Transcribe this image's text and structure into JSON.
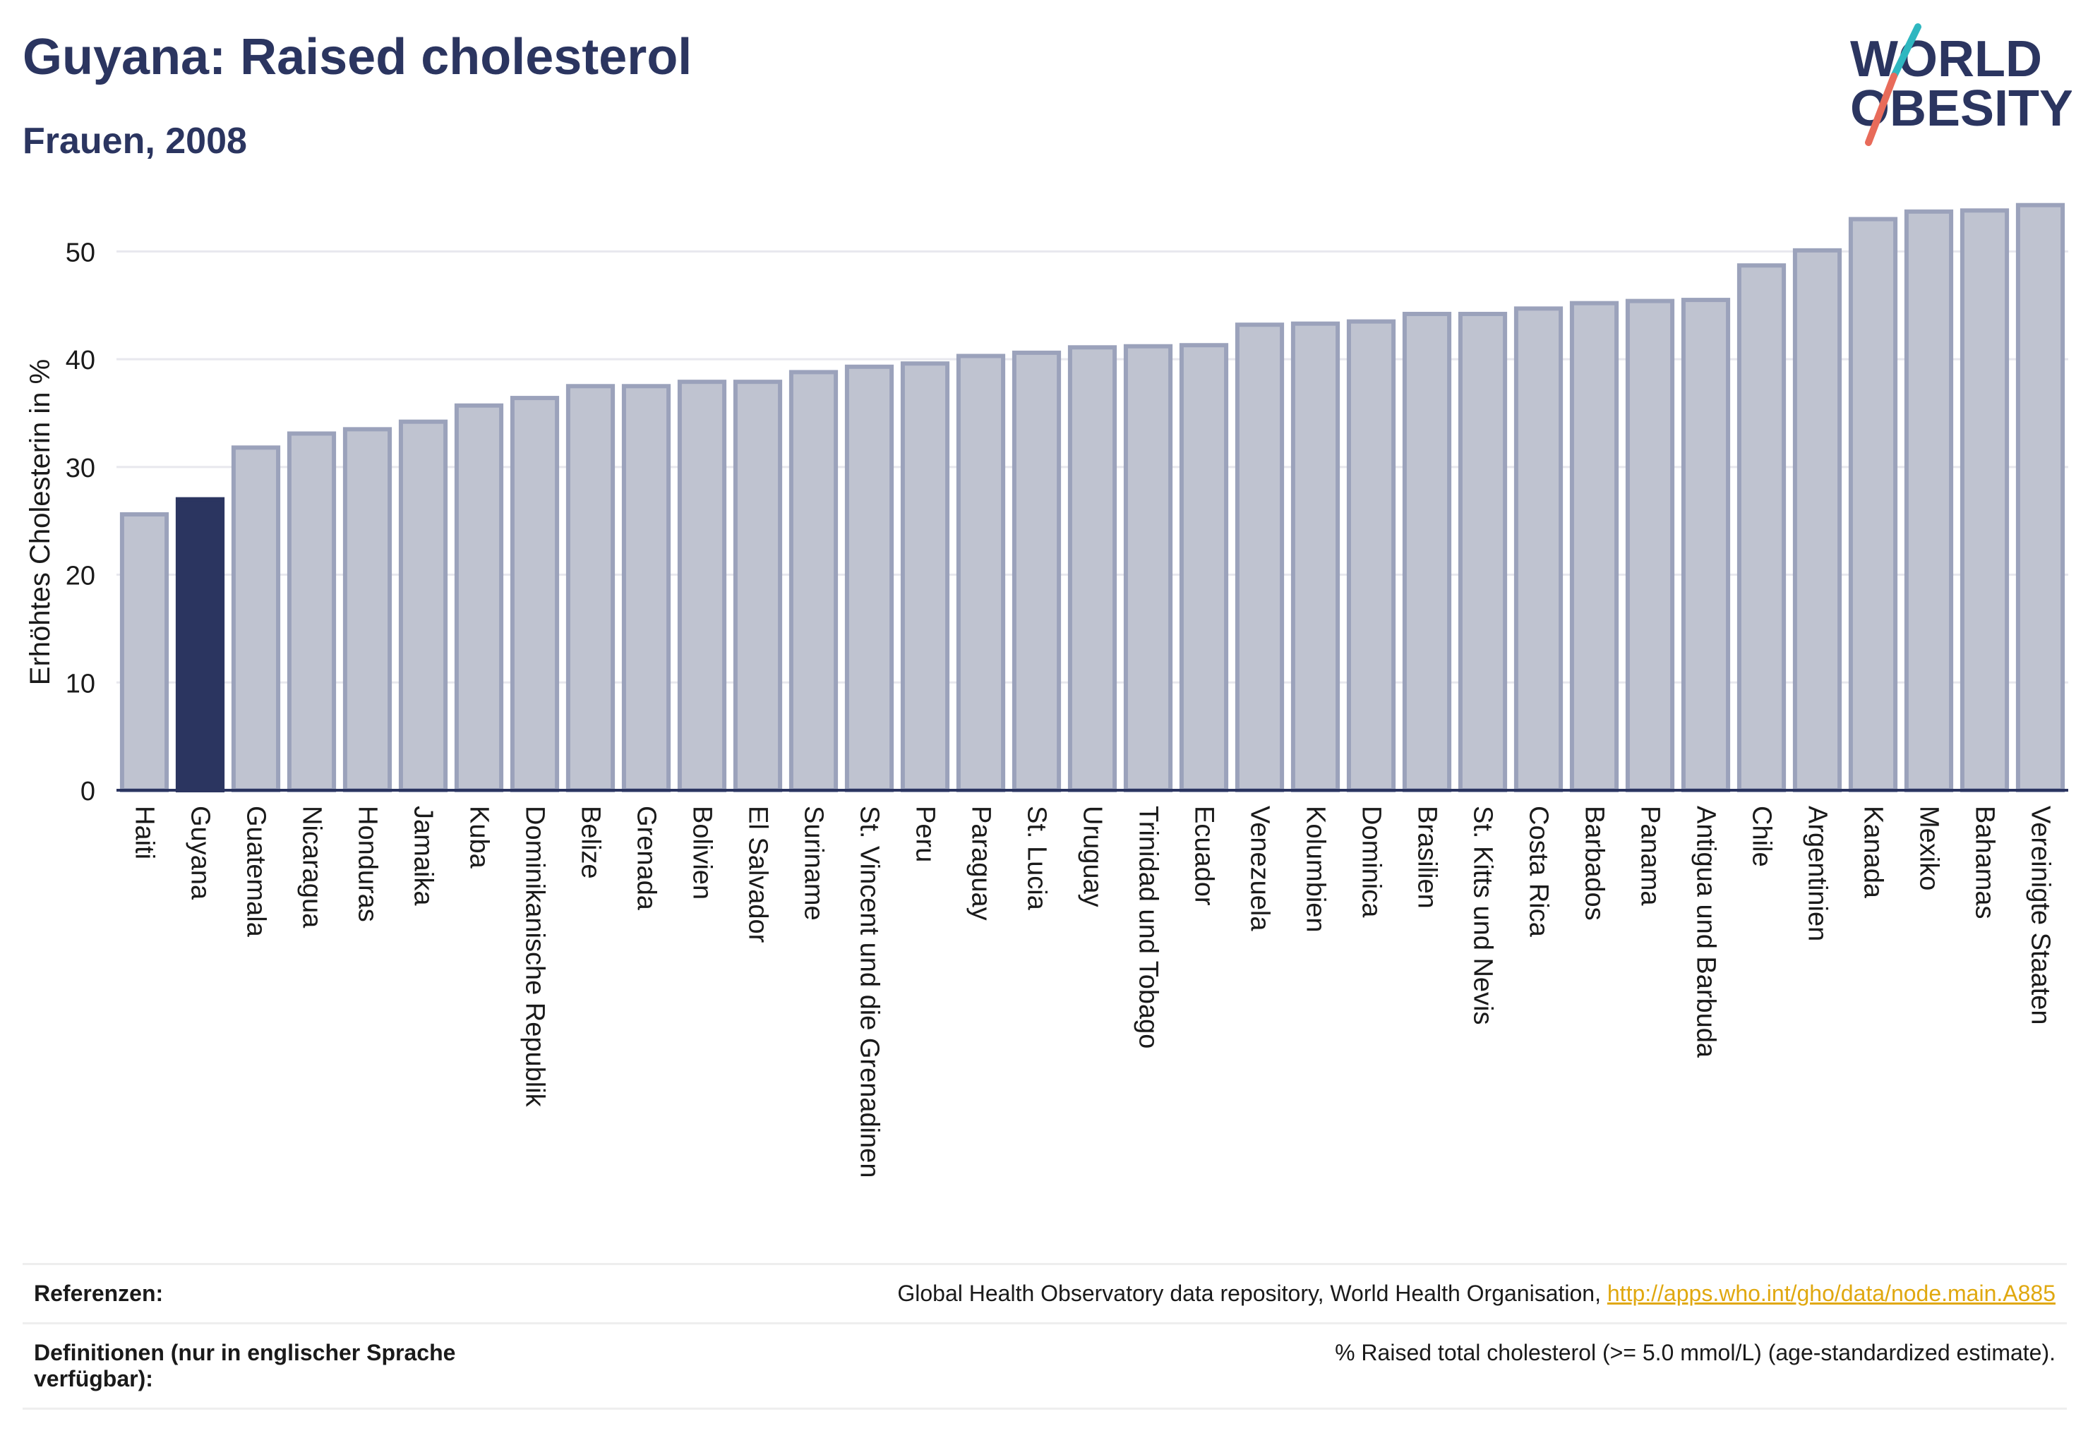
{
  "header": {
    "title": "Guyana: Raised cholesterol",
    "subtitle": "Frauen, 2008"
  },
  "logo": {
    "line1": "WORLD",
    "line2": "OBESITY",
    "accent_teal": "#2fb7c0",
    "accent_red": "#e86b5a"
  },
  "chart_data": {
    "type": "bar",
    "ylabel": "Erhöhtes Cholesterin in %",
    "ylim": [
      0,
      55
    ],
    "yticks": [
      0,
      10,
      20,
      30,
      40,
      50
    ],
    "grid": true,
    "highlight": "Guyana",
    "colors": {
      "bar": "#bfc3d0",
      "bar_edge": "#9ba2bb",
      "highlight": "#2b3560",
      "grid": "#e8e8ee",
      "axis": "#2b3560"
    },
    "categories": [
      "Haiti",
      "Guyana",
      "Guatemala",
      "Nicaragua",
      "Honduras",
      "Jamaika",
      "Kuba",
      "Dominikanische Republik",
      "Belize",
      "Grenada",
      "Bolivien",
      "El Salvador",
      "Suriname",
      "St. Vincent und die Grenadinen",
      "Peru",
      "Paraguay",
      "St. Lucia",
      "Uruguay",
      "Trinidad und Tobago",
      "Ecuador",
      "Venezuela",
      "Kolumbien",
      "Dominica",
      "Brasilien",
      "St. Kitts und Nevis",
      "Costa Rica",
      "Barbados",
      "Panama",
      "Antigua und Barbuda",
      "Chile",
      "Argentinien",
      "Kanada",
      "Mexiko",
      "Bahamas",
      "Vereinigte Staaten"
    ],
    "values": [
      25.6,
      27.0,
      31.8,
      33.1,
      33.5,
      34.2,
      35.7,
      36.4,
      37.5,
      37.5,
      37.9,
      37.9,
      38.8,
      39.3,
      39.6,
      40.3,
      40.6,
      41.1,
      41.2,
      41.3,
      43.2,
      43.3,
      43.5,
      44.2,
      44.2,
      44.7,
      45.2,
      45.4,
      45.5,
      48.7,
      50.1,
      53.0,
      53.7,
      53.8,
      54.3
    ]
  },
  "footer": {
    "references_label": "Referenzen:",
    "references_text": "Global Health Observatory data repository, World Health Organisation, ",
    "references_link": "http://apps.who.int/gho/data/node.main.A885",
    "definitions_label": "Definitionen (nur in englischer Sprache verfügbar):",
    "definitions_text": "% Raised total cholesterol (>= 5.0 mmol/L) (age-standardized estimate)."
  }
}
